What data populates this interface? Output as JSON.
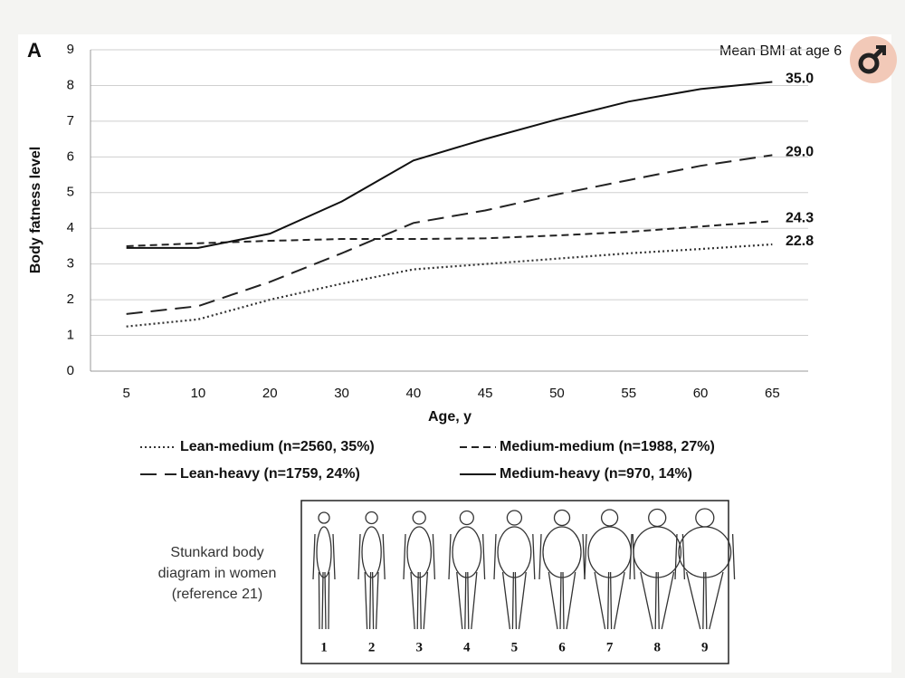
{
  "chart_data": {
    "type": "line",
    "panel_label": "A",
    "annotation": "Mean BMI at age 6",
    "x_label": "Age, y",
    "y_label": "Body fatness level",
    "categories": [
      "5",
      "10",
      "20",
      "30",
      "40",
      "45",
      "50",
      "55",
      "60",
      "65"
    ],
    "ylim": [
      0,
      9
    ],
    "yticks": [
      0,
      1,
      2,
      3,
      4,
      5,
      6,
      7,
      8,
      9
    ],
    "grid": true,
    "series": [
      {
        "name": "Lean-medium (n=2560, 35%)",
        "color": "#333333",
        "dash": "dotted",
        "end_label": "22.8",
        "values": [
          1.25,
          1.45,
          2.0,
          2.45,
          2.85,
          3.0,
          3.15,
          3.3,
          3.42,
          3.55
        ]
      },
      {
        "name": "Medium-medium (n=1988, 27%)",
        "color": "#222222",
        "dash": "short-dash",
        "end_label": "24.3",
        "values": [
          3.5,
          3.58,
          3.65,
          3.7,
          3.7,
          3.72,
          3.8,
          3.9,
          4.05,
          4.2
        ]
      },
      {
        "name": "Lean-heavy (n=1759, 24%)",
        "color": "#222222",
        "dash": "long-dash",
        "end_label": "29.0",
        "values": [
          1.6,
          1.82,
          2.5,
          3.3,
          4.15,
          4.5,
          4.95,
          5.35,
          5.75,
          6.05
        ]
      },
      {
        "name": "Medium-heavy (n=970, 14%)",
        "color": "#111111",
        "dash": "solid",
        "end_label": "35.0",
        "values": [
          3.45,
          3.45,
          3.85,
          4.75,
          5.9,
          6.5,
          7.05,
          7.55,
          7.9,
          8.1
        ]
      }
    ]
  },
  "diagram": {
    "caption_lines": [
      "Stunkard body",
      "diagram in women",
      "(reference 21)"
    ],
    "figure_labels": [
      "1",
      "2",
      "3",
      "4",
      "5",
      "6",
      "7",
      "8",
      "9"
    ]
  }
}
